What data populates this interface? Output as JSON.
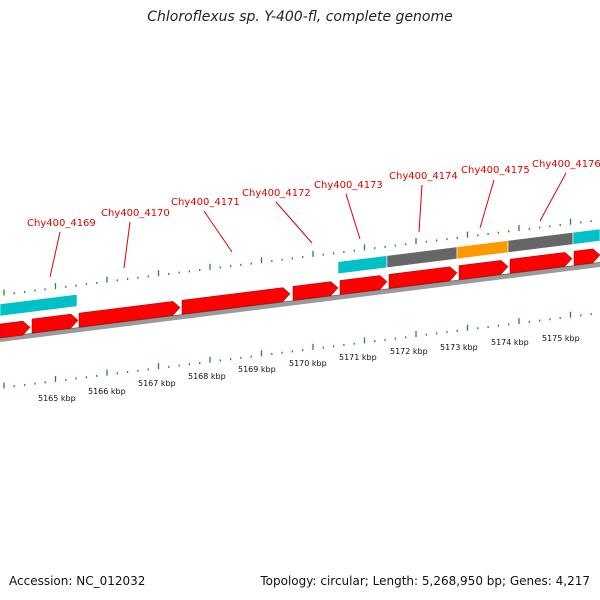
{
  "title": "Chloroflexus sp. Y-400-fl, complete genome",
  "accession_text": "Accession: NC_012032",
  "summary_text": "Topology: circular; Length: 5,268,950 bp; Genes: 4,217",
  "colors": {
    "cds": "#ff0000",
    "gene": "#00c0c8",
    "rna": "#ff9900",
    "other": "#666666",
    "backbone": "#888888",
    "tick": "#228b22",
    "label": "#e00000"
  },
  "gene_labels": [
    "Chy400_4169",
    "Chy400_4170",
    "Chy400_4171",
    "Chy400_4172",
    "Chy400_4173",
    "Chy400_4174",
    "Chy400_4175",
    "Chy400_4176"
  ],
  "kbp_labels": [
    "5165 kbp",
    "5166 kbp",
    "5167 kbp",
    "5168 kbp",
    "5169 kbp",
    "5170 kbp",
    "5171 kbp",
    "5172 kbp",
    "5173 kbp",
    "5174 kbp",
    "5175 kbp"
  ]
}
